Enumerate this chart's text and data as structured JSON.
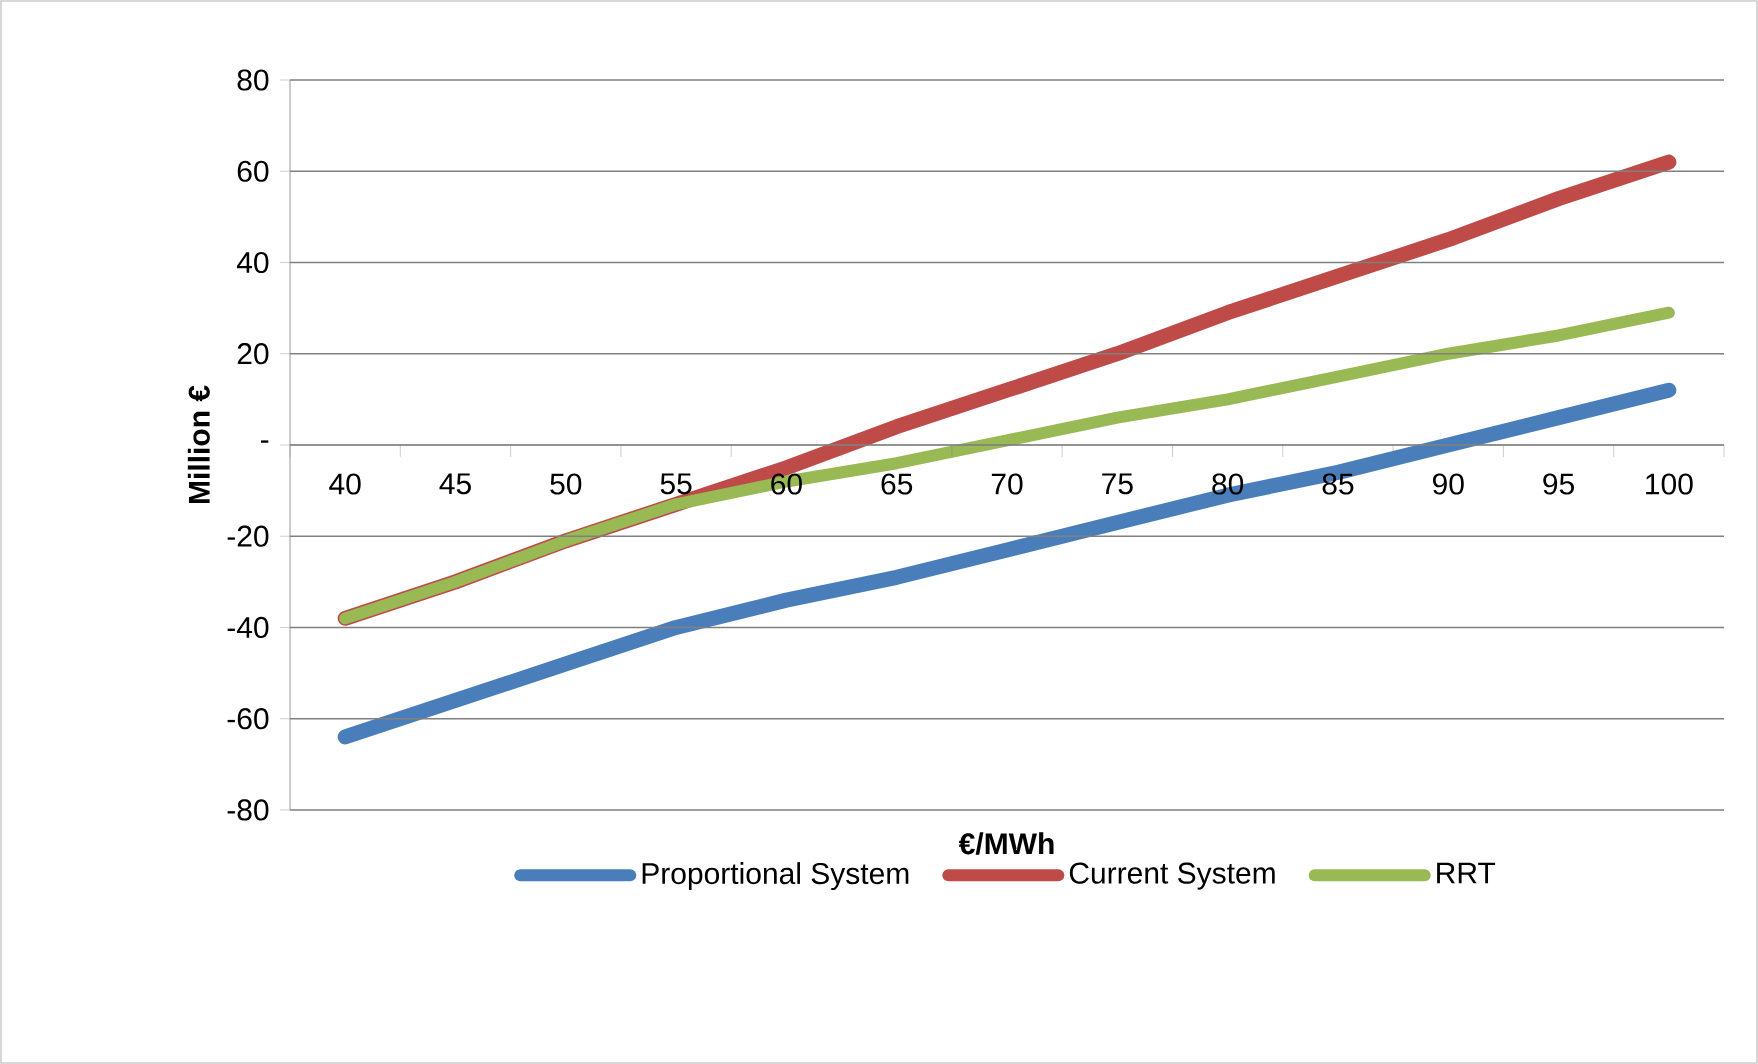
{
  "chart_data": {
    "type": "line",
    "xlabel": "€/MWh",
    "ylabel": "Million €",
    "categories": [
      "40",
      "45",
      "50",
      "55",
      "60",
      "65",
      "70",
      "75",
      "80",
      "85",
      "90",
      "95",
      "100"
    ],
    "series": [
      {
        "name": "Proportional System",
        "color": "#4a7ebb",
        "values": [
          -64,
          -56,
          -48,
          -40,
          -34,
          -29,
          -23,
          -17,
          -11,
          -6,
          0,
          6,
          12
        ]
      },
      {
        "name": "Current System",
        "color": "#be4b48",
        "values": [
          -38,
          -30,
          -21,
          -13,
          -5,
          4,
          12,
          20,
          29,
          37,
          45,
          54,
          62
        ]
      },
      {
        "name": "RRT",
        "color": "#98b954",
        "values": [
          -38,
          -30,
          -21,
          -13,
          -8,
          -4,
          1,
          6,
          10,
          15,
          20,
          24,
          29
        ]
      }
    ],
    "ylim": [
      -80,
      80
    ],
    "yticks": [
      -80,
      -60,
      -40,
      -20,
      {
        "value": 0,
        "label": "-"
      },
      20,
      40,
      60,
      80
    ],
    "grid": "y",
    "legend": "bottom",
    "marker": "none",
    "line_style": "solid"
  }
}
